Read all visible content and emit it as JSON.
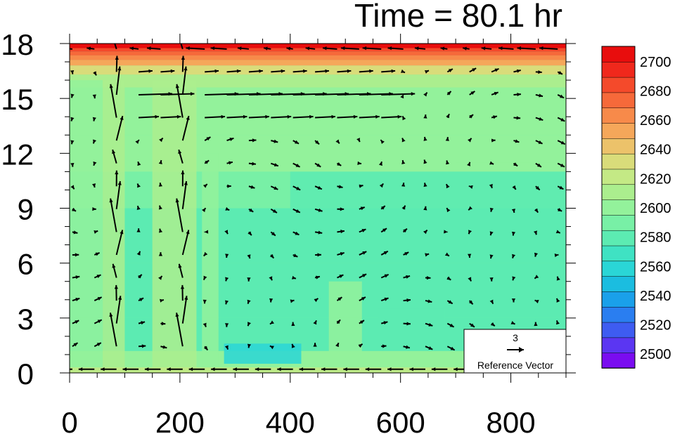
{
  "chart_data": {
    "type": "heatmap",
    "title": "Time = 80.1 hr",
    "xlabel": "",
    "ylabel": "",
    "xlim": [
      0,
      900
    ],
    "ylim": [
      0,
      18
    ],
    "x_ticks": [
      "0",
      "200",
      "400",
      "600",
      "800"
    ],
    "x_tick_values": [
      0,
      200,
      400,
      600,
      800
    ],
    "y_ticks": [
      "0",
      "3",
      "6",
      "9",
      "12",
      "15",
      "18"
    ],
    "y_tick_values": [
      0,
      3,
      6,
      9,
      12,
      15,
      18
    ],
    "colorbar": {
      "levels": [
        2490,
        2500,
        2510,
        2520,
        2530,
        2540,
        2550,
        2560,
        2570,
        2580,
        2590,
        2600,
        2610,
        2620,
        2630,
        2640,
        2650,
        2660,
        2670,
        2680,
        2690,
        2700,
        2710
      ],
      "labels": [
        "2500",
        "2520",
        "2540",
        "2560",
        "2580",
        "2600",
        "2620",
        "2640",
        "2660",
        "2680",
        "2700"
      ],
      "label_values": [
        2500,
        2520,
        2540,
        2560,
        2580,
        2600,
        2620,
        2640,
        2660,
        2680,
        2700
      ],
      "colors": [
        "#7a0cf0",
        "#5b36f2",
        "#3e5cf1",
        "#2a7ef0",
        "#1aa0ea",
        "#1bbde0",
        "#2ad6d6",
        "#3fe2c3",
        "#5cebb2",
        "#78f0a6",
        "#93f29b",
        "#abee8e",
        "#c4e985",
        "#d9dc7a",
        "#ecc26a",
        "#f5a75a",
        "#f78a4a",
        "#f6693a",
        "#f44a2b",
        "#f0281c",
        "#e80d0d"
      ]
    },
    "reference_vector": {
      "value": "3",
      "label": "Reference Vector"
    }
  }
}
